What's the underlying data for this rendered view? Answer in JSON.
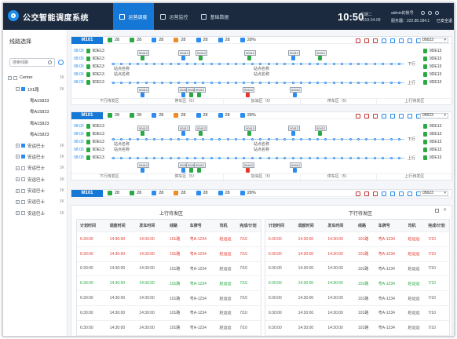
{
  "header": {
    "app_title": "公交智能调度系统",
    "nav": [
      {
        "label": "运营调度",
        "icon": "dispatch-icon",
        "active": true
      },
      {
        "label": "运营监控",
        "icon": "monitor-icon",
        "active": false
      },
      {
        "label": "基础数据",
        "icon": "database-icon",
        "active": false
      }
    ],
    "time": "10:50",
    "weekday": "星期二",
    "date": "2018-04-08",
    "account": "admin的账号",
    "server": "服务器：222.80.184.1",
    "logout": "已安全退"
  },
  "sidebar": {
    "title": "线路选择",
    "search_placeholder": "搜索线路",
    "tree": [
      {
        "label": "Center",
        "count": "3K",
        "level": 0,
        "checked": false,
        "expand": "−"
      },
      {
        "label": "101路",
        "count": "3K",
        "level": 1,
        "checked": true,
        "expand": "−"
      },
      {
        "label": "粤A15823",
        "count": "",
        "level": 2,
        "checked": false,
        "expand": ""
      },
      {
        "label": "粤A15823",
        "count": "",
        "level": 2,
        "checked": false,
        "expand": ""
      },
      {
        "label": "粤A15823",
        "count": "",
        "level": 2,
        "checked": false,
        "expand": ""
      },
      {
        "label": "粤A15823",
        "count": "",
        "level": 2,
        "checked": false,
        "expand": ""
      },
      {
        "label": "安运巴士",
        "count": "3K",
        "level": 1,
        "checked": true,
        "expand": "+"
      },
      {
        "label": "安运巴士",
        "count": "3K",
        "level": 1,
        "checked": true,
        "expand": "+"
      },
      {
        "label": "安运巴士",
        "count": "3K",
        "level": 1,
        "checked": false,
        "expand": "+"
      },
      {
        "label": "安运巴士",
        "count": "3K",
        "level": 1,
        "checked": false,
        "expand": "+"
      },
      {
        "label": "安运巴士",
        "count": "3K",
        "level": 1,
        "checked": false,
        "expand": "+"
      },
      {
        "label": "安运巴士",
        "count": "3K",
        "level": 1,
        "checked": false,
        "expand": "+"
      },
      {
        "label": "安运巴士",
        "count": "3K",
        "level": 1,
        "checked": false,
        "expand": "+"
      }
    ]
  },
  "route_panels": [
    {
      "route": "M101",
      "stats": [
        {
          "icon": "green-bus-icon",
          "color": "#2aa843",
          "value": "28"
        },
        {
          "icon": "green-bus-icon",
          "color": "#2aa843",
          "value": "28"
        },
        {
          "icon": "blue-bus-icon",
          "color": "#2a8cf0",
          "value": "28"
        },
        {
          "icon": "orange-bus-icon",
          "color": "#f08a24",
          "value": "28"
        },
        {
          "icon": "blue-doc-icon",
          "color": "#2a8cf0",
          "value": "28"
        },
        {
          "icon": "blue-doc-icon",
          "color": "#2a8cf0",
          "value": "28"
        },
        {
          "icon": "blue-pie-icon",
          "color": "#2a8cf0",
          "value": "28%"
        }
      ],
      "select": "05623",
      "left_times": [
        "08:00",
        "08:00",
        "08:00",
        "08:00",
        "08:00"
      ],
      "left_ids": [
        "9DE13",
        "9DE13",
        "9DE13",
        "9DE13",
        "9DE13"
      ],
      "right_ids": [
        "9DE13",
        "9DE13",
        "9DE13",
        "9DE13",
        "9DE13"
      ],
      "up_label": "下行",
      "down_label": "上行",
      "station_label": "站点名称",
      "vehicle_tag": "00412",
      "footer": [
        "下行待发区",
        "停车区（5）",
        "加油区（5）",
        "停车区（5）",
        "上行待发区"
      ]
    },
    {
      "route": "M101",
      "stats": [
        {
          "icon": "green-bus-icon",
          "color": "#2aa843",
          "value": "28"
        },
        {
          "icon": "green-bus-icon",
          "color": "#2aa843",
          "value": "28"
        },
        {
          "icon": "blue-bus-icon",
          "color": "#2a8cf0",
          "value": "28"
        },
        {
          "icon": "orange-bus-icon",
          "color": "#f08a24",
          "value": "28"
        },
        {
          "icon": "blue-doc-icon",
          "color": "#2a8cf0",
          "value": "28"
        },
        {
          "icon": "blue-doc-icon",
          "color": "#2a8cf0",
          "value": "28"
        },
        {
          "icon": "blue-pie-icon",
          "color": "#2a8cf0",
          "value": "28%"
        }
      ],
      "select": "05623",
      "left_times": [
        "08:00",
        "08:00",
        "08:00",
        "08:00",
        "08:00"
      ],
      "left_ids": [
        "9DE13",
        "9DE13",
        "9DE13",
        "9DE13",
        "9DE13"
      ],
      "right_ids": [
        "9DE13",
        "9DE13",
        "9DE13",
        "9DE13",
        "9DE13"
      ],
      "up_label": "下行",
      "down_label": "上行",
      "station_label": "站点名称",
      "vehicle_tag": "00412",
      "footer": [
        "下行待发区",
        "停车区（5）",
        "加油区（5）",
        "停车区（5）",
        "上行待发区"
      ]
    },
    {
      "route": "M101",
      "stats": [
        {
          "icon": "green-bus-icon",
          "color": "#2aa843",
          "value": "28"
        },
        {
          "icon": "green-bus-icon",
          "color": "#2aa843",
          "value": "28"
        },
        {
          "icon": "blue-bus-icon",
          "color": "#2a8cf0",
          "value": "28"
        },
        {
          "icon": "orange-bus-icon",
          "color": "#f08a24",
          "value": "28"
        },
        {
          "icon": "blue-doc-icon",
          "color": "#2a8cf0",
          "value": "28"
        },
        {
          "icon": "blue-doc-icon",
          "color": "#2a8cf0",
          "value": "28"
        },
        {
          "icon": "blue-pie-icon",
          "color": "#2a8cf0",
          "value": "28%"
        }
      ],
      "select": "05623"
    }
  ],
  "waiting": {
    "up_title": "上行待发区",
    "down_title": "下行待发区",
    "columns": [
      "计划时间",
      "调度时间",
      "发车时间",
      "线路",
      "车牌号",
      "司机",
      "完成/计划"
    ],
    "rows": [
      {
        "plan": "6:30:00",
        "dispatch": "14:30:00",
        "depart": "14:30:00",
        "line": "101路",
        "plate": "粤A-1234",
        "driver": "赵运运",
        "done": "7/10",
        "status": "red"
      },
      {
        "plan": "6:30:00",
        "dispatch": "14:30:00",
        "depart": "14:30:00",
        "line": "101路",
        "plate": "粤A-1234",
        "driver": "赵运运",
        "done": "7/10",
        "status": "red"
      },
      {
        "plan": "6:30:00",
        "dispatch": "14:30:00",
        "depart": "14:30:00",
        "line": "101路",
        "plate": "粤A-1234",
        "driver": "赵运运",
        "done": "7/10",
        "status": "norm"
      },
      {
        "plan": "6:30:00",
        "dispatch": "14:30:00",
        "depart": "14:30:00",
        "line": "101路",
        "plate": "粤A-1234",
        "driver": "赵运运",
        "done": "7/10",
        "status": "green"
      },
      {
        "plan": "6:30:00",
        "dispatch": "14:30:00",
        "depart": "14:30:00",
        "line": "101路",
        "plate": "粤A-1234",
        "driver": "赵运运",
        "done": "7/10",
        "status": "norm"
      },
      {
        "plan": "6:30:00",
        "dispatch": "14:30:00",
        "depart": "14:30:00",
        "line": "101路",
        "plate": "粤A-1234",
        "driver": "赵运运",
        "done": "7/10",
        "status": "norm"
      },
      {
        "plan": "6:30:00",
        "dispatch": "14:30:00",
        "depart": "14:30:00",
        "line": "101路",
        "plate": "粤A-1234",
        "driver": "赵运运",
        "done": "7/10",
        "status": "norm"
      }
    ]
  }
}
